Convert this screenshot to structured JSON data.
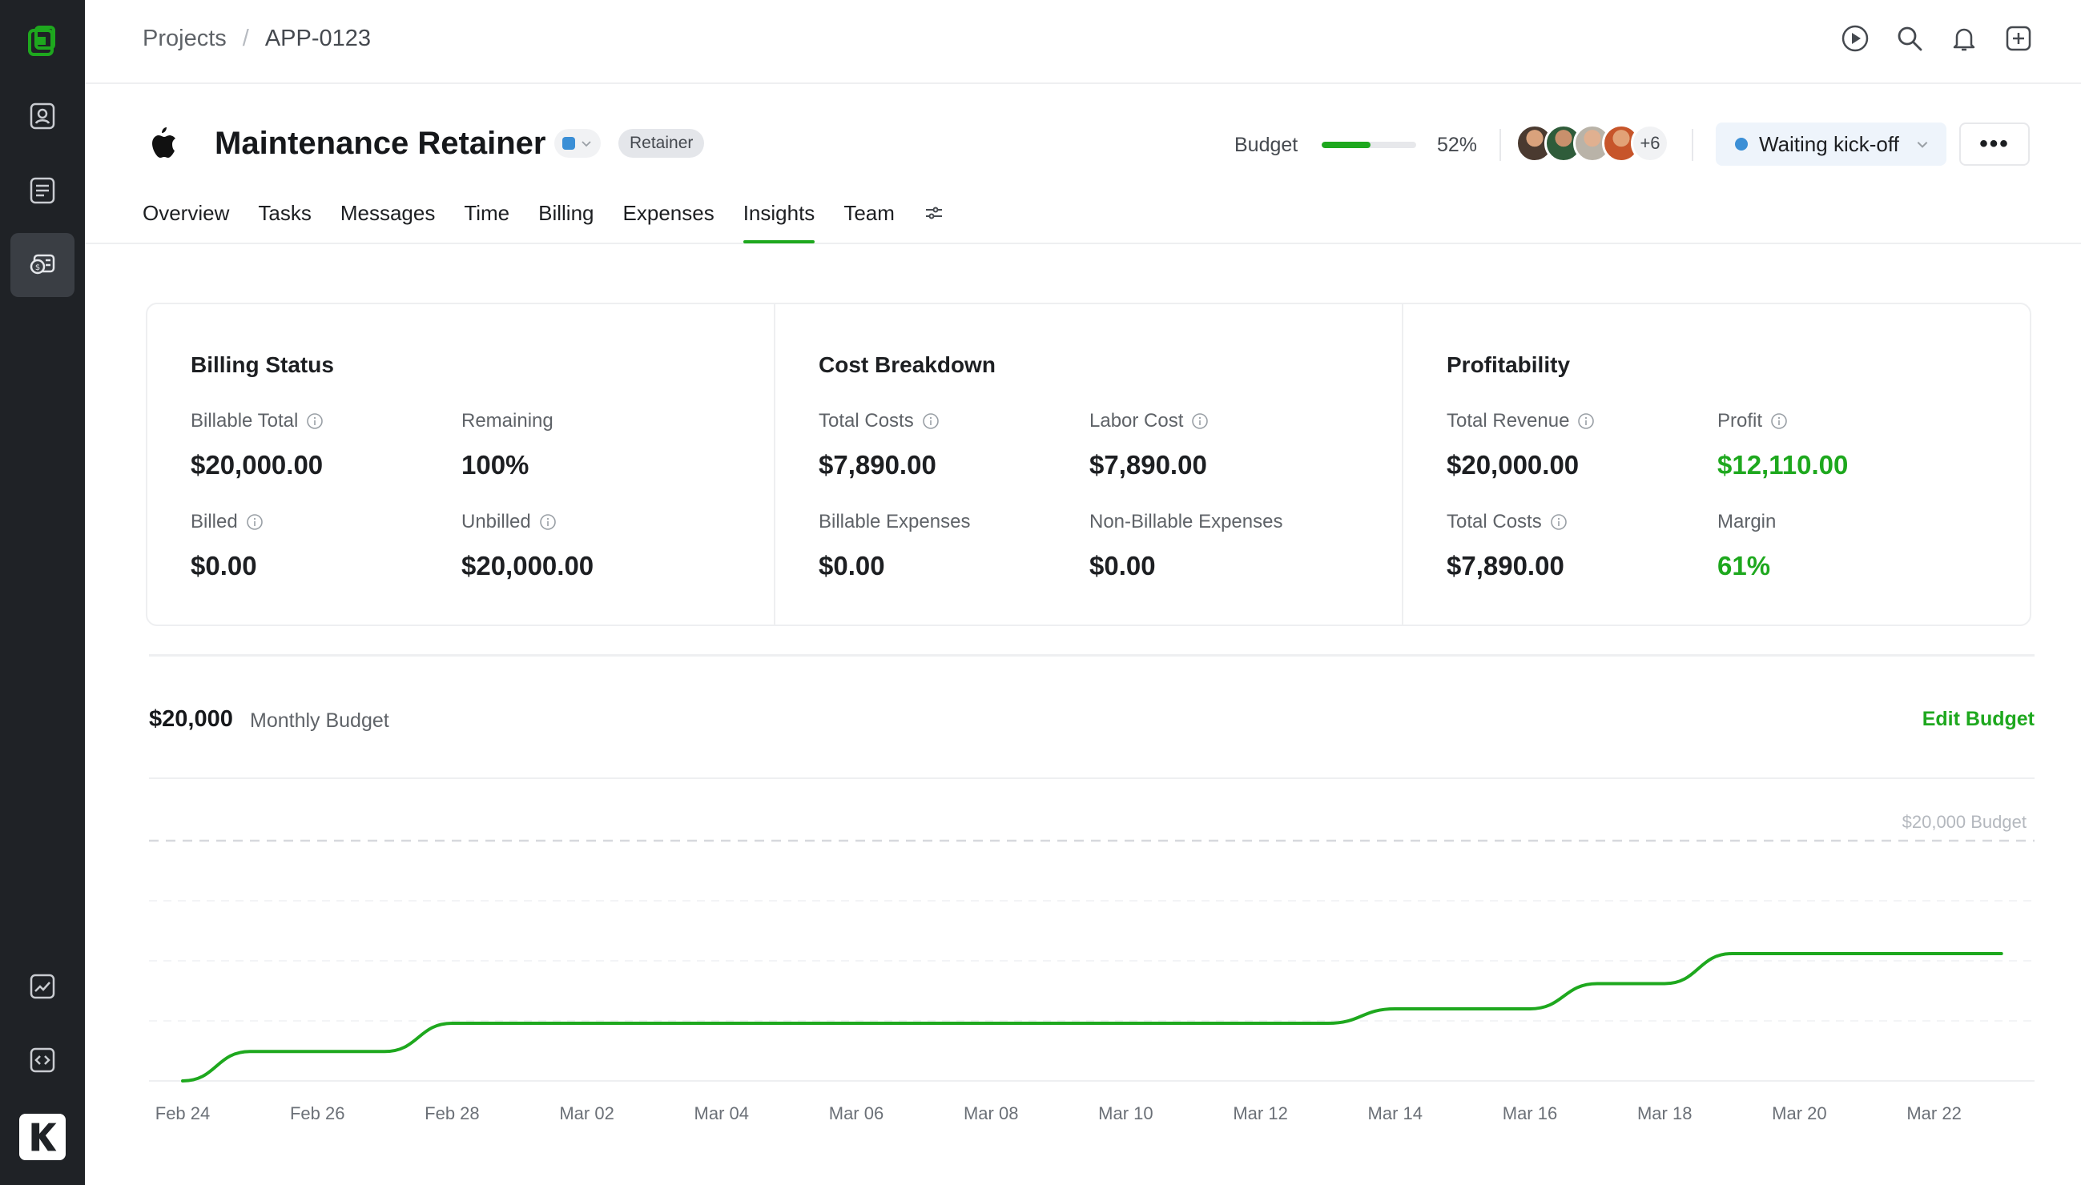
{
  "sidebar": {
    "items": [
      {
        "name": "sidebar-logo",
        "icon": "app-logo-icon"
      },
      {
        "name": "sidebar-item-contacts",
        "icon": "contact-card-icon"
      },
      {
        "name": "sidebar-item-documents",
        "icon": "document-icon"
      },
      {
        "name": "sidebar-item-finance",
        "icon": "money-stack-icon",
        "active": true
      },
      {
        "name": "sidebar-item-reports",
        "icon": "chart-icon"
      },
      {
        "name": "sidebar-item-code",
        "icon": "code-icon"
      },
      {
        "name": "sidebar-item-workspace",
        "icon": "workspace-logo-icon"
      }
    ]
  },
  "breadcrumb": {
    "root": "Projects",
    "separator": "/",
    "current": "APP-0123"
  },
  "topbar_icons": [
    "play-icon",
    "search-icon",
    "bell-icon",
    "add-square-icon"
  ],
  "project": {
    "title": "Maintenance Retainer",
    "color": "#3b8fd6",
    "badge": "Retainer",
    "budget_label": "Budget",
    "budget_percent": 52,
    "budget_percent_label": "52%",
    "avatar_more": "+6",
    "status": "Waiting kick-off",
    "more_label": "•••"
  },
  "tabs": [
    {
      "label": "Overview"
    },
    {
      "label": "Tasks"
    },
    {
      "label": "Messages"
    },
    {
      "label": "Time"
    },
    {
      "label": "Billing"
    },
    {
      "label": "Expenses"
    },
    {
      "label": "Insights",
      "active": true
    },
    {
      "label": "Team"
    }
  ],
  "billing_status": {
    "title": "Billing Status",
    "billable_total": {
      "label": "Billable Total",
      "value": "$20,000.00"
    },
    "remaining": {
      "label": "Remaining",
      "value": "100%"
    },
    "billed": {
      "label": "Billed",
      "value": "$0.00"
    },
    "unbilled": {
      "label": "Unbilled",
      "value": "$20,000.00"
    }
  },
  "cost_breakdown": {
    "title": "Cost Breakdown",
    "total_costs": {
      "label": "Total Costs",
      "value": "$7,890.00"
    },
    "labor_cost": {
      "label": "Labor Cost",
      "value": "$7,890.00"
    },
    "billable_expenses": {
      "label": "Billable Expenses",
      "value": "$0.00"
    },
    "non_billable_expenses": {
      "label": "Non-Billable Expenses",
      "value": "$0.00"
    }
  },
  "profitability": {
    "title": "Profitability",
    "total_revenue": {
      "label": "Total Revenue",
      "value": "$20,000.00"
    },
    "profit": {
      "label": "Profit",
      "value": "$12,110.00"
    },
    "total_costs": {
      "label": "Total Costs",
      "value": "$7,890.00"
    },
    "margin": {
      "label": "Margin",
      "value": "61%"
    }
  },
  "monthly_budget": {
    "value": "$20,000",
    "label": "Monthly Budget",
    "edit_label": "Edit Budget"
  },
  "chart_data": {
    "type": "line",
    "budget_line": {
      "value": 20000,
      "label": "$20,000 Budget"
    },
    "ylim": [
      0,
      20000
    ],
    "x_ticks": [
      "Feb 24",
      "Feb 26",
      "Feb 28",
      "Mar 02",
      "Mar 04",
      "Mar 06",
      "Mar 08",
      "Mar 10",
      "Mar 12",
      "Mar 14",
      "Mar 16",
      "Mar 18",
      "Mar 20",
      "Mar 22"
    ],
    "series": [
      {
        "color": "#1ea81e",
        "points": [
          {
            "x": "Feb 24",
            "y": 0
          },
          {
            "x": "Feb 25",
            "y": 2450
          },
          {
            "x": "Feb 27",
            "y": 2450
          },
          {
            "x": "Feb 28",
            "y": 4800
          },
          {
            "x": "Mar 13",
            "y": 4800
          },
          {
            "x": "Mar 14",
            "y": 6000
          },
          {
            "x": "Mar 16",
            "y": 6000
          },
          {
            "x": "Mar 17",
            "y": 8100
          },
          {
            "x": "Mar 18",
            "y": 8100
          },
          {
            "x": "Mar 19",
            "y": 10600
          },
          {
            "x": "Mar 23",
            "y": 10600
          }
        ]
      }
    ]
  },
  "colors": {
    "accent": "#1ea81e",
    "sidebar": "#1f2226",
    "status_dot": "#3b8fd6"
  }
}
